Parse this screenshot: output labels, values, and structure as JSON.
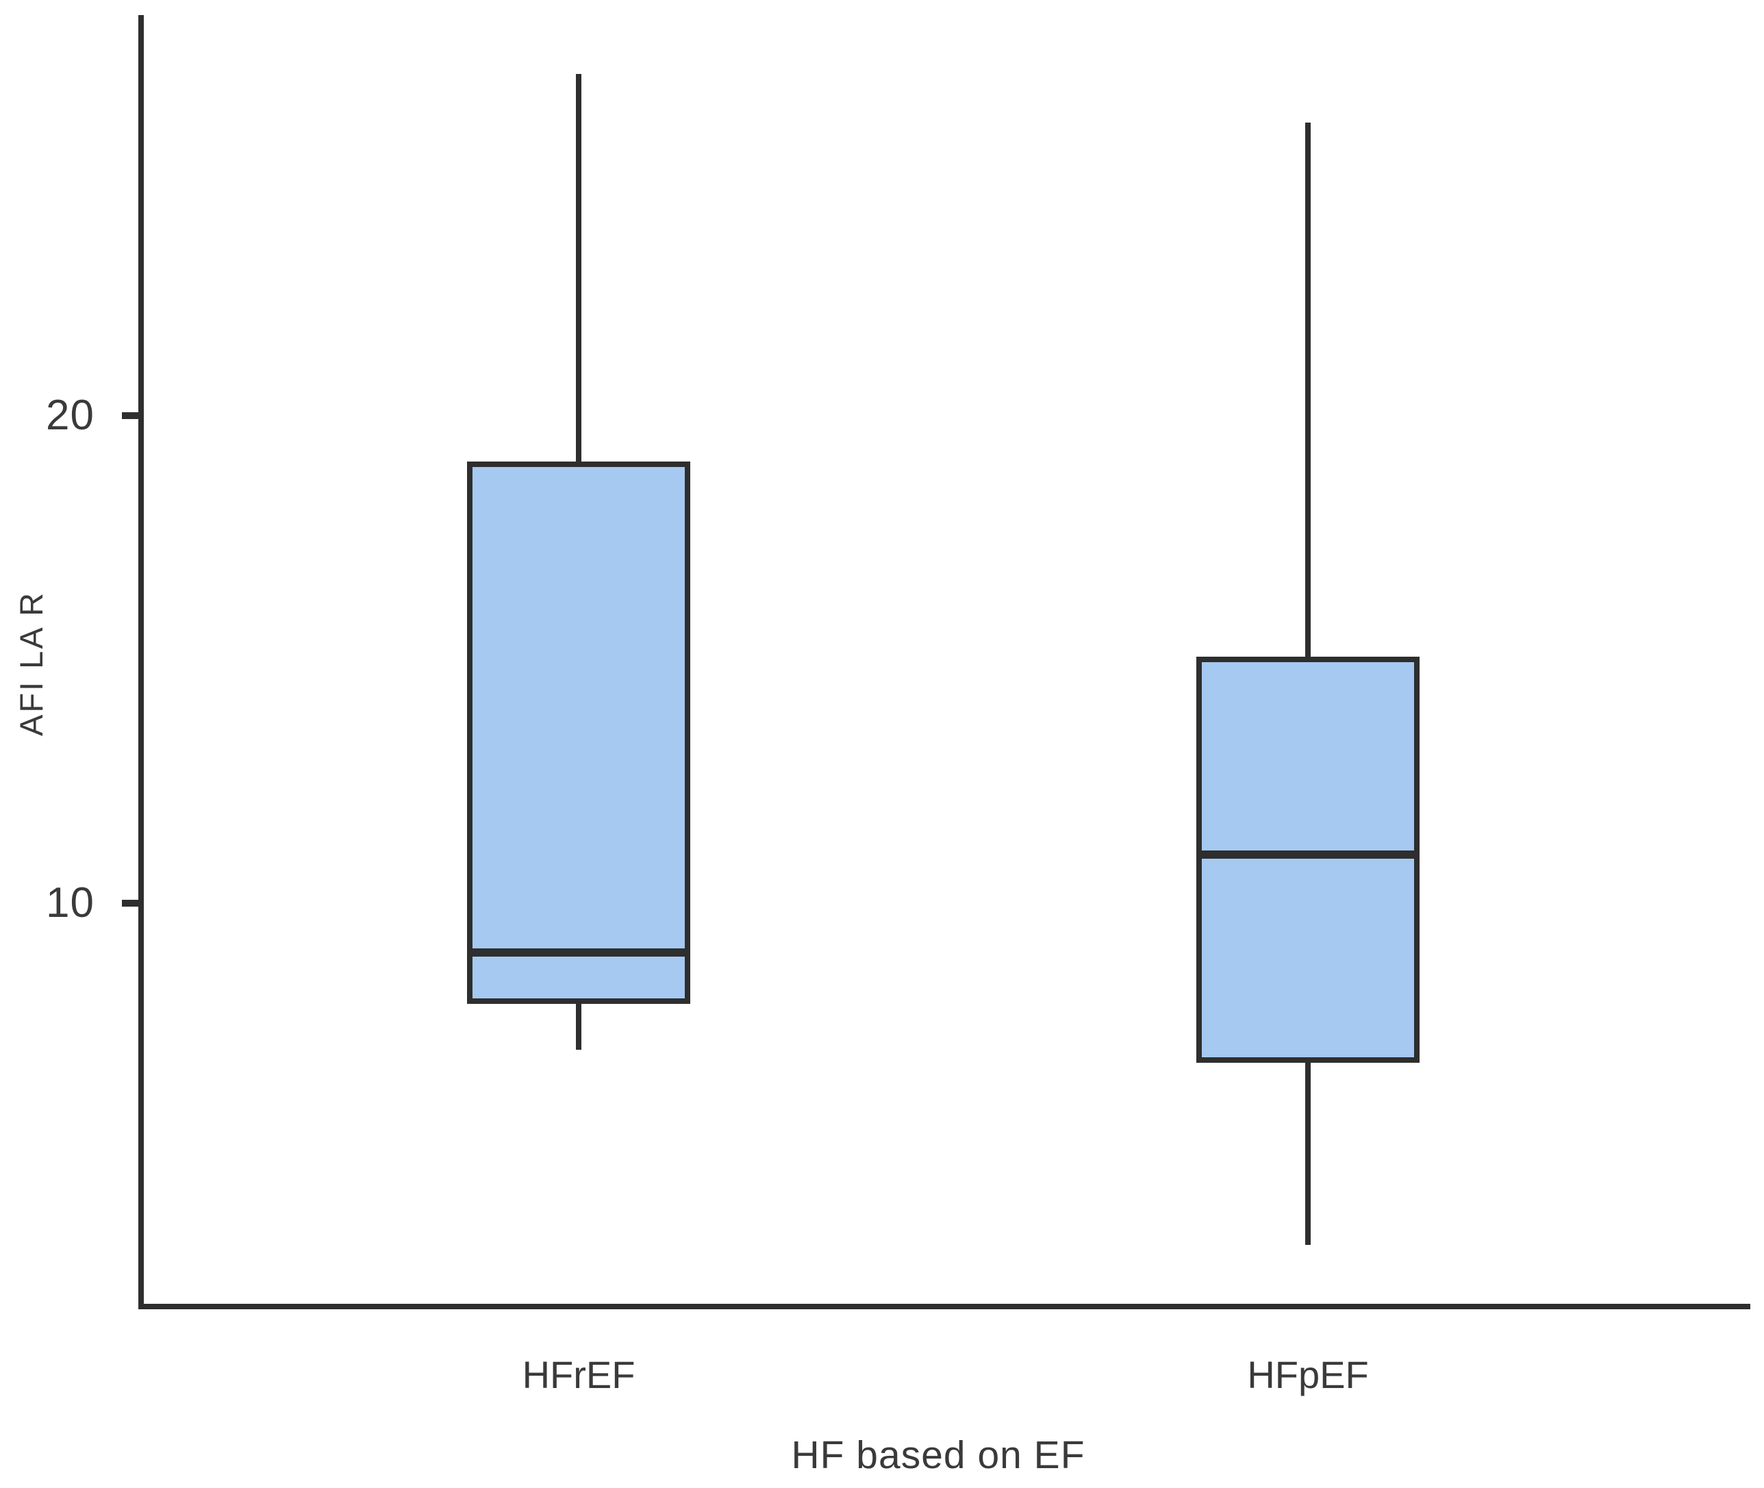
{
  "chart_data": {
    "type": "box",
    "title": "",
    "xlabel": "HF based on EF",
    "ylabel": "AFI LA R",
    "categories": [
      "HFrEF",
      "HFpEF"
    ],
    "series": [
      {
        "name": "HFrEF",
        "min": 7,
        "q1": 8,
        "median": 9,
        "q3": 19,
        "max": 27
      },
      {
        "name": "HFpEF",
        "min": 3,
        "q1": 6.8,
        "median": 11,
        "q3": 15,
        "max": 26
      }
    ],
    "yticks": [
      20,
      10
    ],
    "ylim": [
      1.8,
      28.2
    ],
    "grid": false,
    "legend": "none",
    "colors": {
      "box_fill": "#a5c9f0",
      "line": "#2e2e2e",
      "background": "#ffffff"
    }
  }
}
